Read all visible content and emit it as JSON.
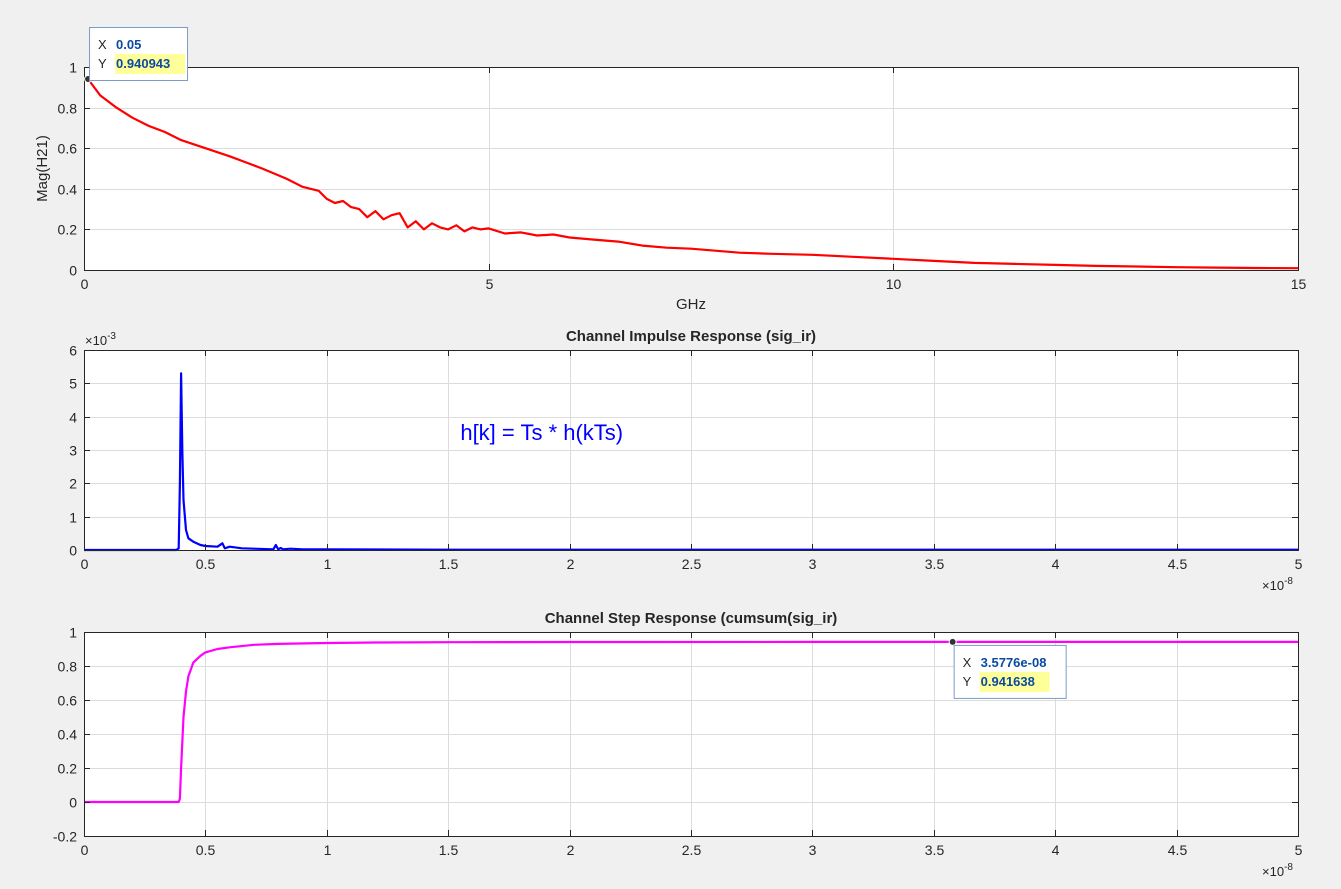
{
  "colors": {
    "background": "#f0f0f0",
    "axes_bg": "#ffffff",
    "grid": "#dcdcdc",
    "axis": "#262626",
    "series_magnitude": "#ff0000",
    "series_impulse": "#0000ff",
    "series_step": "#ff00ff",
    "datatip_value": "#0b4aa3",
    "datatip_highlight": "#ffff99"
  },
  "chart_data": [
    {
      "id": "magnitude",
      "type": "line",
      "title": "",
      "xlabel": "GHz",
      "ylabel": "Mag(H21)",
      "exponent_label": "",
      "xlim": [
        0,
        15
      ],
      "ylim": [
        0,
        1
      ],
      "xticks": [
        0,
        5,
        10,
        15
      ],
      "xtick_labels": [
        "0",
        "5",
        "10",
        "15"
      ],
      "yticks": [
        0,
        0.2,
        0.4,
        0.6,
        0.8,
        1
      ],
      "ytick_labels": [
        "0",
        "0.2",
        "0.4",
        "0.6",
        "0.8",
        "1"
      ],
      "grid": true,
      "series": [
        {
          "color": "#ff0000",
          "x": [
            0.05,
            0.2,
            0.4,
            0.6,
            0.8,
            1.0,
            1.2,
            1.5,
            1.8,
            2.0,
            2.2,
            2.5,
            2.7,
            2.9,
            3.0,
            3.1,
            3.2,
            3.3,
            3.4,
            3.5,
            3.6,
            3.7,
            3.8,
            3.9,
            4.0,
            4.1,
            4.2,
            4.3,
            4.4,
            4.5,
            4.6,
            4.7,
            4.8,
            4.9,
            5.0,
            5.2,
            5.4,
            5.6,
            5.8,
            6.0,
            6.3,
            6.6,
            6.9,
            7.2,
            7.5,
            7.8,
            8.1,
            8.5,
            9.0,
            9.5,
            10.0,
            10.5,
            11.0,
            11.5,
            12.0,
            12.5,
            13.0,
            13.5,
            14.0,
            14.5,
            15.0
          ],
          "y": [
            0.941,
            0.86,
            0.8,
            0.75,
            0.71,
            0.68,
            0.64,
            0.6,
            0.56,
            0.53,
            0.5,
            0.45,
            0.41,
            0.39,
            0.35,
            0.33,
            0.34,
            0.31,
            0.3,
            0.26,
            0.29,
            0.25,
            0.27,
            0.28,
            0.21,
            0.24,
            0.2,
            0.23,
            0.21,
            0.2,
            0.22,
            0.19,
            0.21,
            0.2,
            0.205,
            0.18,
            0.185,
            0.17,
            0.175,
            0.16,
            0.15,
            0.14,
            0.12,
            0.11,
            0.105,
            0.095,
            0.085,
            0.08,
            0.075,
            0.065,
            0.055,
            0.045,
            0.035,
            0.03,
            0.025,
            0.02,
            0.017,
            0.014,
            0.012,
            0.01,
            0.009
          ]
        }
      ],
      "datatip": {
        "x_label": "X",
        "x_value": "0.05",
        "y_label": "Y",
        "y_value": "0.940943",
        "x": 0.05,
        "y": 0.940943
      },
      "annotation": ""
    },
    {
      "id": "impulse",
      "type": "line",
      "title": "Channel  Impulse  Response  (sig_ir)",
      "xlabel": "",
      "ylabel": "",
      "y_exponent_label": "×10",
      "y_exponent_power": "-3",
      "x_exponent_label": "×10",
      "x_exponent_power": "-8",
      "xlim": [
        0,
        5
      ],
      "ylim": [
        0,
        6
      ],
      "xticks": [
        0,
        0.5,
        1,
        1.5,
        2,
        2.5,
        3,
        3.5,
        4,
        4.5,
        5
      ],
      "xtick_labels": [
        "0",
        "0.5",
        "1",
        "1.5",
        "2",
        "2.5",
        "3",
        "3.5",
        "4",
        "4.5",
        "5"
      ],
      "yticks": [
        0,
        1,
        2,
        3,
        4,
        5,
        6
      ],
      "ytick_labels": [
        "0",
        "1",
        "2",
        "3",
        "4",
        "5",
        "6"
      ],
      "grid": true,
      "series": [
        {
          "color": "#0000ff",
          "x": [
            0,
            0.38,
            0.39,
            0.395,
            0.4,
            0.405,
            0.41,
            0.42,
            0.43,
            0.45,
            0.48,
            0.5,
            0.55,
            0.57,
            0.58,
            0.6,
            0.65,
            0.7,
            0.78,
            0.79,
            0.8,
            0.81,
            0.82,
            0.85,
            0.9,
            1.0,
            1.5,
            2.0,
            3.0,
            4.0,
            5.0
          ],
          "y": [
            0,
            0,
            0.05,
            2.0,
            5.3,
            3.0,
            1.5,
            0.6,
            0.35,
            0.25,
            0.15,
            0.12,
            0.1,
            0.2,
            0.05,
            0.1,
            0.05,
            0.04,
            0.02,
            0.15,
            0.02,
            0.06,
            0.02,
            0.04,
            0.02,
            0.02,
            0.01,
            0.01,
            0.01,
            0.01,
            0.01
          ]
        }
      ],
      "annotation": "h[k] = Ts * h(kTs)",
      "annotation_color": "#0000ff",
      "annotation_pos": {
        "x": 1.55,
        "y": 3.3
      }
    },
    {
      "id": "step",
      "type": "line",
      "title": "Channel  Step  Response  (cumsum(sig_ir)",
      "xlabel": "",
      "ylabel": "",
      "x_exponent_label": "×10",
      "x_exponent_power": "-8",
      "xlim": [
        0,
        5
      ],
      "ylim": [
        -0.2,
        1
      ],
      "xticks": [
        0,
        0.5,
        1,
        1.5,
        2,
        2.5,
        3,
        3.5,
        4,
        4.5,
        5
      ],
      "xtick_labels": [
        "0",
        "0.5",
        "1",
        "1.5",
        "2",
        "2.5",
        "3",
        "3.5",
        "4",
        "4.5",
        "5"
      ],
      "yticks": [
        -0.2,
        0,
        0.2,
        0.4,
        0.6,
        0.8,
        1
      ],
      "ytick_labels": [
        "-0.2",
        "0",
        "0.2",
        "0.4",
        "0.6",
        "0.8",
        "1"
      ],
      "grid": true,
      "series": [
        {
          "color": "#ff00ff",
          "x": [
            0,
            0.39,
            0.395,
            0.4,
            0.41,
            0.42,
            0.43,
            0.45,
            0.48,
            0.5,
            0.55,
            0.6,
            0.7,
            0.8,
            1.0,
            1.2,
            1.5,
            2.0,
            3.0,
            3.5776,
            4.0,
            5.0
          ],
          "y": [
            0,
            0,
            0.02,
            0.2,
            0.5,
            0.65,
            0.74,
            0.82,
            0.86,
            0.88,
            0.9,
            0.91,
            0.925,
            0.93,
            0.935,
            0.938,
            0.94,
            0.941,
            0.9415,
            0.941638,
            0.9416,
            0.9416
          ]
        }
      ],
      "datatip": {
        "x_label": "X",
        "x_value": "3.5776e-08",
        "y_label": "Y",
        "y_value": "0.941638",
        "x": 3.5776,
        "y": 0.941638
      },
      "annotation": ""
    }
  ]
}
